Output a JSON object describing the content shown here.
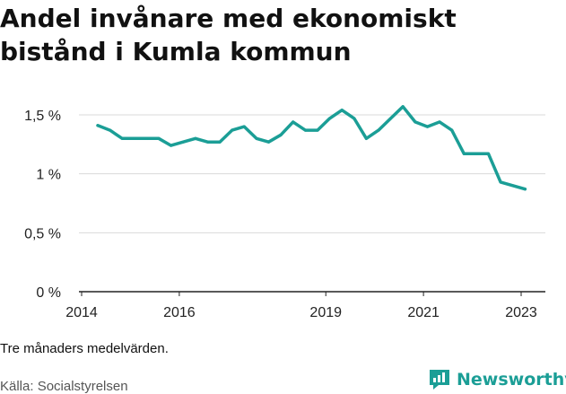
{
  "title": "Andel invånare med ekonomiskt bistånd i Kumla kommun",
  "note": "Tre månaders medelvärden.",
  "source": "Källa: Socialstyrelsen",
  "brand": {
    "name": "Newsworthy",
    "icon": "newsworthy-logo-icon"
  },
  "colors": {
    "line": "#1b9e96",
    "grid": "#d9d9d9",
    "axis": "#222222",
    "brand": "#1b9e96"
  },
  "chart_data": {
    "type": "line",
    "title": "Andel invånare med ekonomiskt bistånd i Kumla kommun",
    "xlabel": "",
    "ylabel": "",
    "xlim": [
      2014,
      2023.5
    ],
    "ylim": [
      0,
      1.5
    ],
    "y_ticks": [
      {
        "value": 0,
        "label": "0 %"
      },
      {
        "value": 0.5,
        "label": "0,5 %"
      },
      {
        "value": 1,
        "label": "1 %"
      },
      {
        "value": 1.5,
        "label": "1,5 %"
      }
    ],
    "x_ticks": [
      {
        "value": 2014,
        "label": "2014"
      },
      {
        "value": 2016,
        "label": "2016"
      },
      {
        "value": 2019,
        "label": "2019"
      },
      {
        "value": 2021,
        "label": "2021"
      },
      {
        "value": 2023,
        "label": "2023"
      }
    ],
    "grid": true,
    "legend": "none",
    "series": [
      {
        "x": [
          2014.33,
          2014.58,
          2014.83,
          2015.08,
          2015.33,
          2015.58,
          2015.83,
          2016.08,
          2016.33,
          2016.58,
          2016.83,
          2017.08,
          2017.33,
          2017.58,
          2017.83,
          2018.08,
          2018.33,
          2018.58,
          2018.83,
          2019.08,
          2019.33,
          2019.58,
          2019.83,
          2020.08,
          2020.33,
          2020.58,
          2020.83,
          2021.08,
          2021.33,
          2021.58,
          2021.83,
          2022.08,
          2022.33,
          2022.58,
          2022.83,
          2023.08
        ],
        "y": [
          1.41,
          1.37,
          1.3,
          1.3,
          1.3,
          1.3,
          1.24,
          1.27,
          1.3,
          1.27,
          1.27,
          1.37,
          1.4,
          1.3,
          1.27,
          1.33,
          1.44,
          1.37,
          1.37,
          1.47,
          1.54,
          1.47,
          1.3,
          1.37,
          1.47,
          1.57,
          1.44,
          1.4,
          1.44,
          1.37,
          1.17,
          1.17,
          1.17,
          0.93,
          0.9,
          0.87
        ]
      }
    ]
  }
}
